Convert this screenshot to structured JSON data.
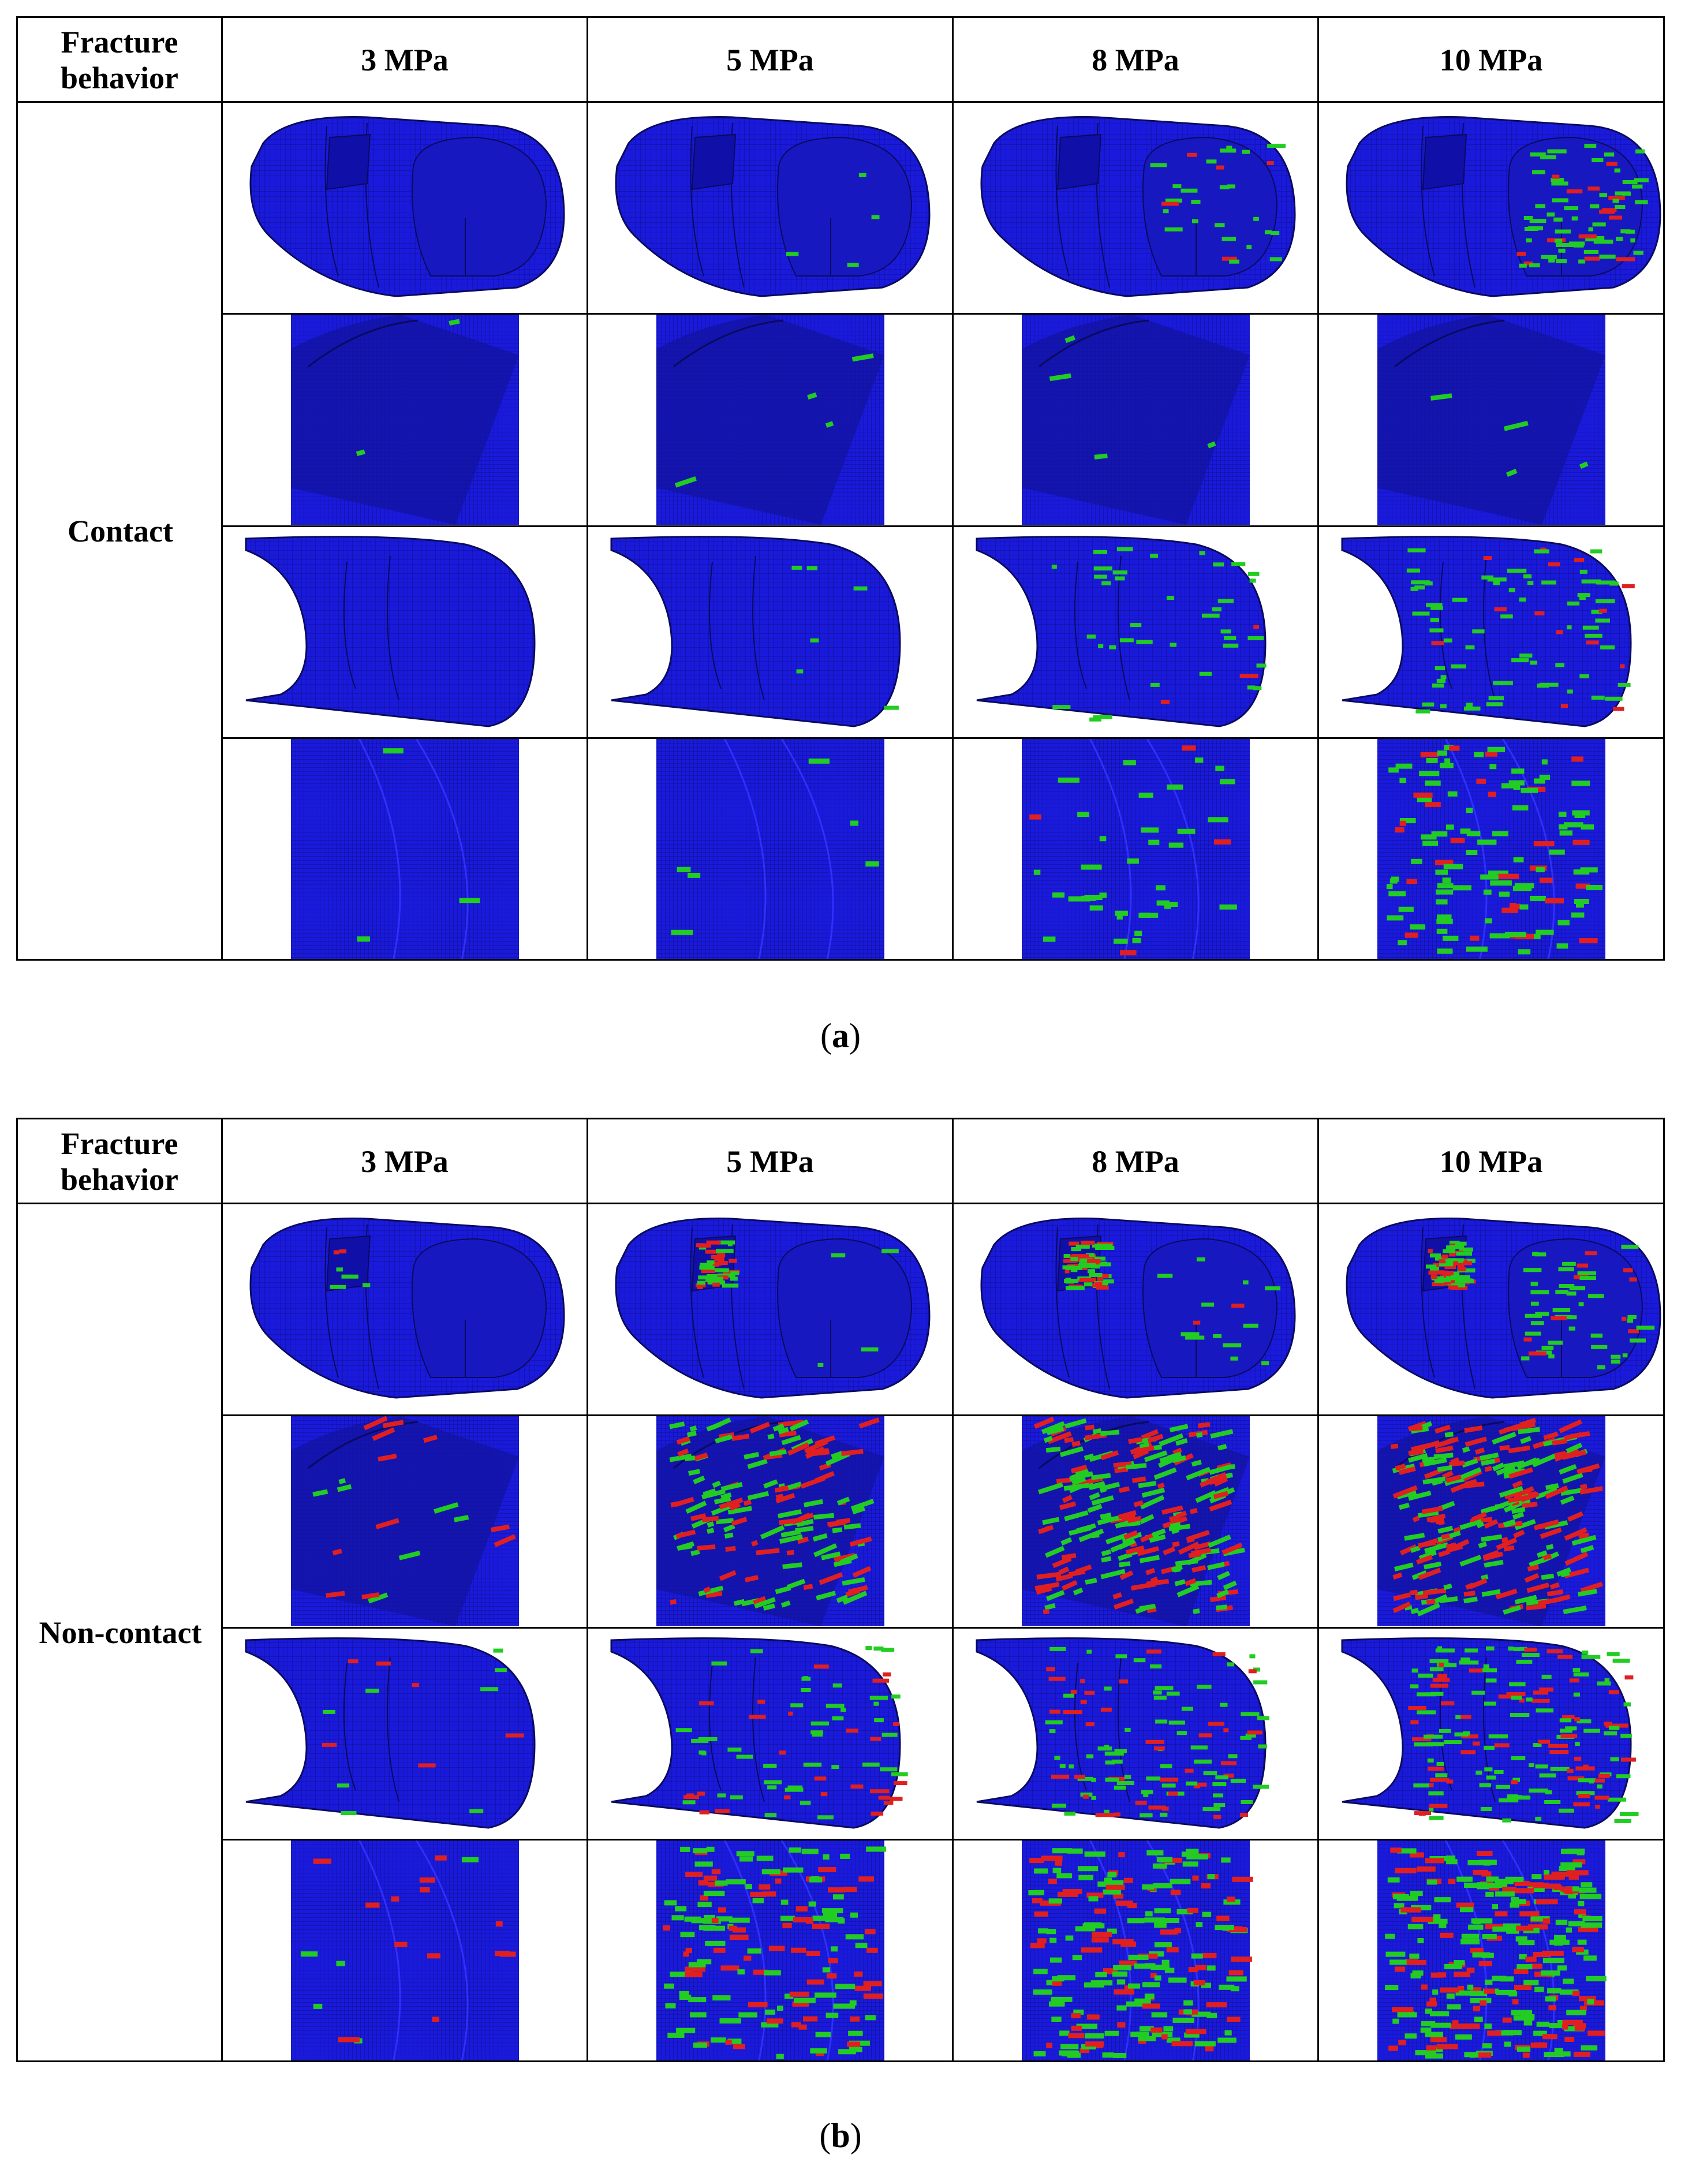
{
  "panels": [
    {
      "id": "a",
      "header": {
        "fracture_label": "Fracture behavior",
        "columns": [
          "3 MPa",
          "5 MPa",
          "8 MPa",
          "10 MPa"
        ]
      },
      "row_label": "Contact",
      "caption": {
        "open": "(",
        "letter": "a",
        "close": ")"
      }
    },
    {
      "id": "b",
      "header": {
        "fracture_label": "Fracture behavior",
        "columns": [
          "3 MPa",
          "5 MPa",
          "8 MPa",
          "10 MPa"
        ]
      },
      "row_label": "Non-contact",
      "caption": {
        "open": "(",
        "letter": "b",
        "close": ")"
      }
    }
  ],
  "colors": {
    "mesh": "#1a1adc",
    "mesh_dark": "#10108a",
    "crack_green": "#22cc22",
    "crack_red": "#e02020"
  }
}
